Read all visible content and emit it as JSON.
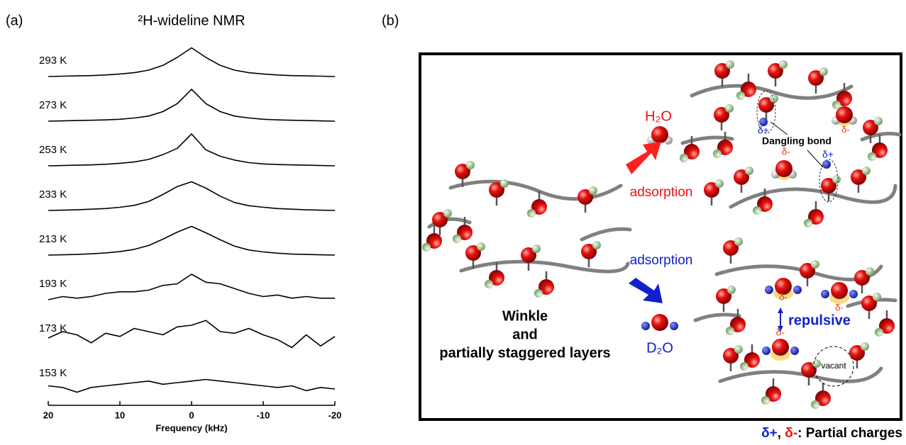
{
  "panel_a_label": "(a)",
  "panel_b_label": "(b)",
  "chart_data": {
    "type": "line",
    "title": "²H-wideline NMR",
    "xlabel": "Frequency (kHz)",
    "x": [
      20,
      18,
      16,
      14,
      12,
      10,
      8,
      6,
      4,
      2,
      0,
      -2,
      -4,
      -6,
      -8,
      -10,
      -12,
      -14,
      -16,
      -18,
      -20
    ],
    "xlim": [
      20,
      -20
    ],
    "xticks": [
      20,
      10,
      0,
      -10,
      -20
    ],
    "series": [
      {
        "name": "293 K",
        "color": "#000000",
        "values": [
          0,
          0.01,
          0.02,
          0.03,
          0.05,
          0.08,
          0.12,
          0.2,
          0.35,
          0.6,
          0.9,
          0.6,
          0.35,
          0.2,
          0.12,
          0.08,
          0.05,
          0.03,
          0.02,
          0.01,
          0
        ]
      },
      {
        "name": "273 K",
        "color": "#000000",
        "values": [
          0,
          0.01,
          0.02,
          0.03,
          0.04,
          0.06,
          0.1,
          0.16,
          0.3,
          0.55,
          1.0,
          0.55,
          0.3,
          0.16,
          0.1,
          0.06,
          0.04,
          0.03,
          0.02,
          0.01,
          0
        ]
      },
      {
        "name": "253 K",
        "color": "#000000",
        "values": [
          0,
          0.01,
          0.02,
          0.03,
          0.05,
          0.08,
          0.12,
          0.2,
          0.35,
          0.55,
          1.0,
          0.5,
          0.3,
          0.18,
          0.1,
          0.06,
          0.04,
          0.03,
          0.02,
          0.01,
          0
        ]
      },
      {
        "name": "233 K",
        "color": "#000000",
        "values": [
          0,
          0.01,
          0.02,
          0.04,
          0.06,
          0.1,
          0.16,
          0.28,
          0.5,
          0.75,
          0.9,
          0.7,
          0.45,
          0.25,
          0.15,
          0.1,
          0.06,
          0.04,
          0.02,
          0.01,
          0
        ]
      },
      {
        "name": "213 K",
        "color": "#000000",
        "values": [
          0,
          0.01,
          0.02,
          0.04,
          0.07,
          0.11,
          0.18,
          0.3,
          0.5,
          0.72,
          0.9,
          0.7,
          0.48,
          0.28,
          0.16,
          0.1,
          0.06,
          0.03,
          0.02,
          0.01,
          0
        ]
      },
      {
        "name": "193 K",
        "color": "#000000",
        "values": [
          0,
          0.1,
          0.05,
          0.1,
          0.2,
          0.25,
          0.25,
          0.3,
          0.45,
          0.5,
          0.8,
          0.55,
          0.5,
          0.35,
          0.2,
          0.1,
          0.15,
          0.05,
          0.1,
          0.05,
          0.05
        ]
      },
      {
        "name": "173 K",
        "color": "#000000",
        "values": [
          0.2,
          0.4,
          0.3,
          0.05,
          0.35,
          0.25,
          0.5,
          0.4,
          0.3,
          0.55,
          0.6,
          0.75,
          0.4,
          0.35,
          0.5,
          0.3,
          0.15,
          -0.1,
          0.3,
          -0.05,
          0.25
        ]
      },
      {
        "name": "153 K",
        "color": "#000000",
        "values": [
          0.1,
          0.05,
          -0.1,
          0.05,
          0.1,
          0.15,
          0.2,
          0.25,
          0.15,
          0.2,
          0.25,
          0.3,
          0.25,
          0.2,
          0.15,
          0.1,
          0.05,
          0.1,
          -0.05,
          0.05,
          0
        ]
      }
    ]
  },
  "panel_b": {
    "h2o": "H₂O",
    "adsorption_top": "adsorption",
    "adsorption_bottom": "adsorption",
    "d2o": "D₂O",
    "dangling_bond": "Dangling bond",
    "repulsive": "repulsive",
    "vacant": "vacant",
    "caption_lines": [
      "Winkle",
      "and",
      "partially staggered layers"
    ],
    "delta_plus": [
      "δ+",
      "δ+"
    ],
    "delta_minus": [
      "δ-",
      "δ-",
      "δ-",
      "δ-",
      "δ-"
    ],
    "footer": {
      "plus": "δ+",
      "sep": ", ",
      "minus": "δ-",
      "text": ": Partial charges"
    }
  }
}
